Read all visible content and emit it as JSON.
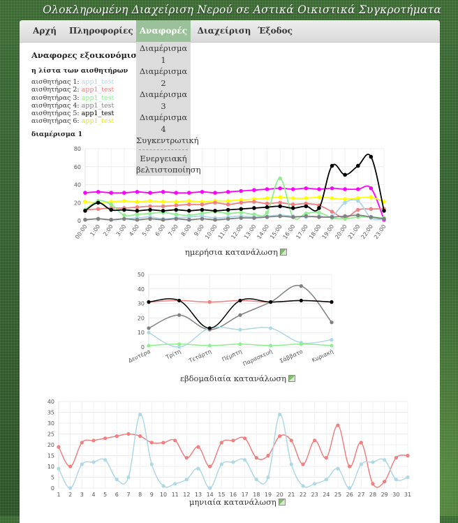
{
  "site": {
    "title": "Ολοκληρωμένη Διαχείριση Νερού σε Αστικά Οικιστικά Συγκροτήματα"
  },
  "nav": {
    "items": [
      {
        "label": "Αρχή",
        "active": false
      },
      {
        "label": "Πληροφορίες",
        "active": false
      },
      {
        "label": "Αναφορές",
        "active": true
      },
      {
        "label": "Διαχείριση",
        "active": false
      },
      {
        "label": "Έξοδος",
        "active": false
      }
    ],
    "dropdown": {
      "items": [
        "Διαμέρισμα 1",
        "Διαμέρισμα 2",
        "Διαμέρισμα 3",
        "Διαμέρισμα 4",
        "Συγκεντρωτική"
      ],
      "extra_line1": "Ενεργειακή",
      "extra_line2": "βελτιστοποίηση"
    }
  },
  "reports": {
    "title": "Αναφορες εξοικονόμισης",
    "sensor_heading": "η λίστα των αισθητήρων",
    "sensors": [
      {
        "label": "αισθητήρας 1:",
        "app": "app1_test",
        "color": "#add8e6"
      },
      {
        "label": "αισθητήρας 2:",
        "app": "app1_test",
        "color": "#f08080"
      },
      {
        "label": "αισθητήρας 3:",
        "app": "app1_test",
        "color": "#90ee90"
      },
      {
        "label": "αισθητήρας 4:",
        "app": "app1_test",
        "color": "#808080"
      },
      {
        "label": "αισθητήρας 5:",
        "app": "app1_test",
        "color": "#000000"
      },
      {
        "label": "αισθητήρας 6:",
        "app": "app1_test",
        "color": "#ffff00"
      }
    ],
    "apartment_heading": "διαμέρισμα 1"
  },
  "chart_data": [
    {
      "type": "line",
      "title": "",
      "caption": "ημερήσια κατανάλωση",
      "ylim": [
        0,
        80
      ],
      "yticks": [
        0,
        20,
        40,
        60,
        80
      ],
      "grid": true,
      "categories": [
        "00:00",
        "1:00",
        "2:00",
        "3:00",
        "4:00",
        "5:00",
        "6:00",
        "7:00",
        "8:00",
        "9:00",
        "10:00",
        "11:00",
        "12:00",
        "13:00",
        "14:00",
        "15:00",
        "16:00",
        "17:00",
        "18:00",
        "19:00",
        "20:00",
        "21:00",
        "22:00",
        "23:00"
      ],
      "series": [
        {
          "color": "#ff00ff",
          "values": [
            31,
            32,
            31,
            31,
            32,
            31,
            32,
            31,
            31,
            32,
            31,
            32,
            33,
            34,
            35,
            36,
            35,
            36,
            35,
            36,
            35,
            35,
            36,
            1
          ]
        },
        {
          "color": "#ffff00",
          "values": [
            21,
            20,
            21,
            22,
            21,
            22,
            21,
            21,
            22,
            21,
            22,
            22,
            23,
            24,
            25,
            26,
            25,
            25,
            26,
            25,
            24,
            25,
            26,
            21
          ]
        },
        {
          "color": "#f08080",
          "values": [
            12,
            13,
            14,
            14,
            15,
            16,
            16,
            17,
            18,
            18,
            20,
            18,
            20,
            21,
            19,
            20,
            18,
            19,
            17,
            10,
            3,
            12,
            13,
            13
          ]
        },
        {
          "color": "#90ee90",
          "values": [
            12,
            22,
            18,
            6,
            7,
            8,
            9,
            7,
            6,
            8,
            10,
            8,
            9,
            7,
            9,
            47,
            4,
            8,
            9,
            3,
            2,
            4,
            4,
            3
          ]
        },
        {
          "color": "#add8e6",
          "values": [
            1,
            2,
            1,
            2,
            3,
            4,
            2,
            3,
            4,
            5,
            3,
            4,
            5,
            4,
            5,
            6,
            5,
            4,
            5,
            5,
            20,
            22,
            3,
            2
          ]
        },
        {
          "color": "#808080",
          "values": [
            1,
            2,
            1,
            2,
            1,
            2,
            1,
            2,
            1,
            2,
            1,
            2,
            3,
            3,
            4,
            5,
            4,
            5,
            4,
            4,
            5,
            6,
            4,
            2
          ]
        },
        {
          "color": "#000000",
          "values": [
            11,
            20,
            12,
            12,
            11,
            12,
            11,
            12,
            11,
            12,
            11,
            12,
            13,
            14,
            15,
            16,
            14,
            16,
            14,
            61,
            51,
            61,
            71,
            11
          ]
        }
      ]
    },
    {
      "type": "line",
      "title": "",
      "caption": "εβδομαδιαία κατανάλωση",
      "ylim": [
        0,
        50
      ],
      "yticks": [
        0,
        10,
        20,
        30,
        40,
        50
      ],
      "grid": true,
      "categories": [
        "Δευτέρα",
        "Τρίτη",
        "Τετάρτη",
        "Πέμπτη",
        "Παρασκευή",
        "Σάββατο",
        "Κυριακή"
      ],
      "series": [
        {
          "color": "#f08080",
          "values": [
            31,
            32,
            31,
            32,
            31,
            32,
            31
          ]
        },
        {
          "color": "#808080",
          "values": [
            13,
            22,
            12,
            22,
            31,
            42,
            17
          ]
        },
        {
          "color": "#add8e6",
          "values": [
            10,
            0,
            13,
            12,
            13,
            3,
            5
          ]
        },
        {
          "color": "#90ee90",
          "values": [
            1,
            2,
            1,
            2,
            1,
            2,
            1
          ]
        },
        {
          "color": "#000000",
          "values": [
            31,
            32,
            13,
            32,
            31,
            32,
            31
          ]
        }
      ]
    },
    {
      "type": "line",
      "title": "",
      "caption": "μηνιαία κατανάλωση",
      "ylim": [
        0,
        40
      ],
      "yticks": [
        0,
        5,
        10,
        15,
        20,
        25,
        30,
        35,
        40
      ],
      "grid": true,
      "categories": [
        "1",
        "2",
        "3",
        "4",
        "5",
        "6",
        "7",
        "8",
        "9",
        "10",
        "11",
        "12",
        "13",
        "14",
        "15",
        "16",
        "17",
        "18",
        "19",
        "20",
        "21",
        "22",
        "23",
        "24",
        "25",
        "26",
        "27",
        "28",
        "29",
        "30",
        "31"
      ],
      "series": [
        {
          "color": "#f08080",
          "values": [
            19,
            10,
            21,
            22,
            23,
            24,
            25,
            24,
            21,
            21,
            22,
            14,
            19,
            10,
            21,
            22,
            23,
            14,
            15,
            24,
            22,
            11,
            22,
            14,
            29,
            10,
            21,
            2,
            3,
            14,
            15
          ]
        },
        {
          "color": "#add8e6",
          "values": [
            9,
            0,
            11,
            12,
            13,
            4,
            5,
            34,
            11,
            1,
            2,
            4,
            9,
            0,
            11,
            12,
            13,
            4,
            5,
            34,
            11,
            1,
            2,
            4,
            9,
            0,
            11,
            12,
            13,
            4,
            5
          ]
        }
      ]
    }
  ]
}
